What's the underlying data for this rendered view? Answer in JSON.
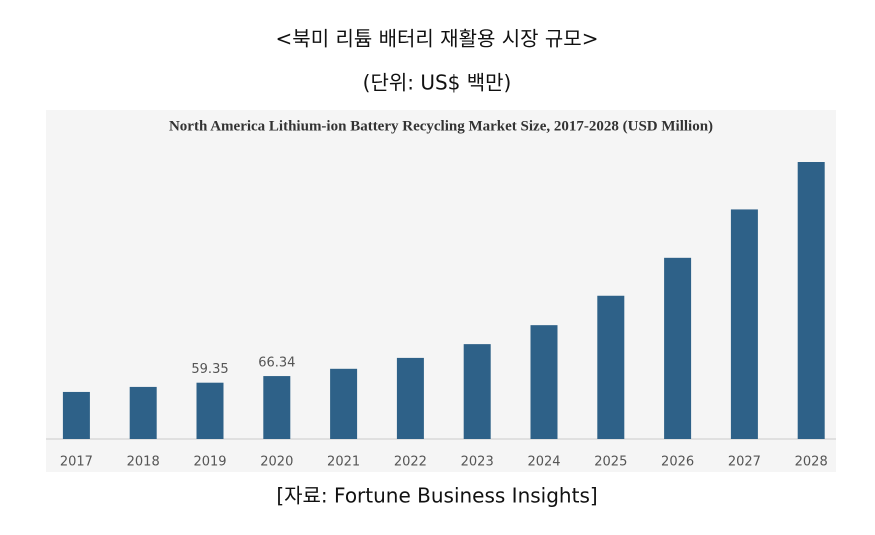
{
  "header": {
    "title": "<북미 리튬 배터리 재활용 시장 규모>",
    "subtitle": "(단위: US$ 백만)"
  },
  "chart_data": {
    "type": "bar",
    "title": "North America Lithium-ion Battery Recycling Market Size, 2017-2028 (USD Million)",
    "categories": [
      "2017",
      "2018",
      "2019",
      "2020",
      "2021",
      "2022",
      "2023",
      "2024",
      "2025",
      "2026",
      "2027",
      "2028"
    ],
    "values": [
      49.6,
      54.9,
      59.35,
      66.34,
      74,
      85.5,
      100,
      120,
      151,
      191,
      242,
      292
    ],
    "value_labels": [
      null,
      null,
      "59.35",
      "66.34",
      null,
      null,
      null,
      null,
      null,
      null,
      null,
      null
    ],
    "color": "#2e6188"
  },
  "source": "[자료: Fortune Business Insights]"
}
